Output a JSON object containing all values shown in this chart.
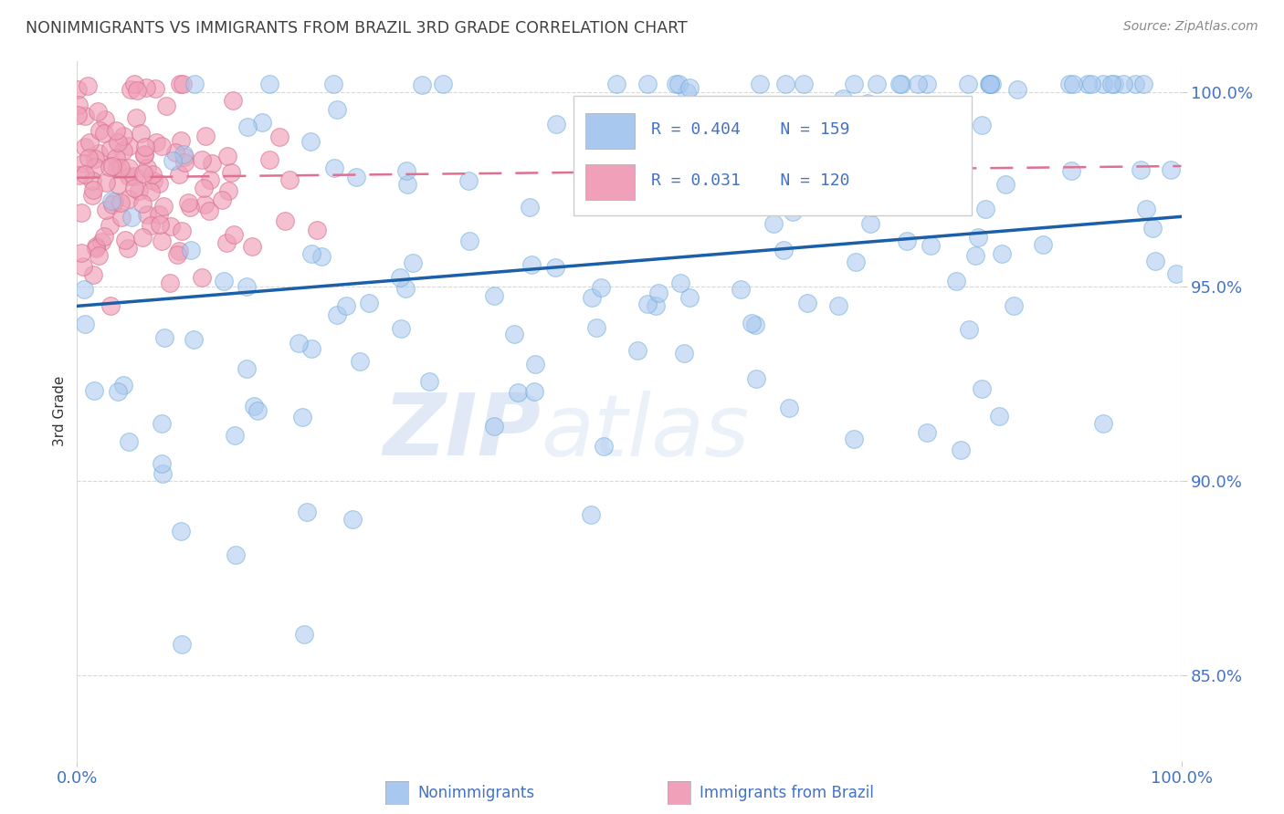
{
  "title": "NONIMMIGRANTS VS IMMIGRANTS FROM BRAZIL 3RD GRADE CORRELATION CHART",
  "source_text": "Source: ZipAtlas.com",
  "ylabel": "3rd Grade",
  "xlim": [
    0.0,
    1.0
  ],
  "ylim": [
    0.828,
    1.008
  ],
  "ytick_labels": [
    "85.0%",
    "90.0%",
    "95.0%",
    "100.0%"
  ],
  "ytick_values": [
    0.85,
    0.9,
    0.95,
    1.0
  ],
  "xtick_labels": [
    "0.0%",
    "100.0%"
  ],
  "xtick_values": [
    0.0,
    1.0
  ],
  "nonimmigrant_color": "#a8c8f0",
  "nonimmigrant_edge": "#6aaad8",
  "immigrant_color": "#f0a0b8",
  "immigrant_edge": "#d87090",
  "nonimmigrant_R": 0.404,
  "nonimmigrant_N": 159,
  "immigrant_R": 0.031,
  "immigrant_N": 120,
  "legend_label_1": "Nonimmigrants",
  "legend_label_2": "Immigrants from Brazil",
  "watermark_zip": "ZIP",
  "watermark_atlas": "atlas",
  "background_color": "#ffffff",
  "grid_color": "#d8d8d8",
  "text_color": "#4472c4",
  "nonimmigrant_line_color": "#1a5fa8",
  "immigrant_line_color": "#e07090",
  "title_color": "#404040",
  "source_color": "#888888",
  "seed": 99,
  "nonimmigrant_line_y0": 0.945,
  "nonimmigrant_line_y1": 0.968,
  "immigrant_line_y0": 0.978,
  "immigrant_line_y1": 0.981
}
